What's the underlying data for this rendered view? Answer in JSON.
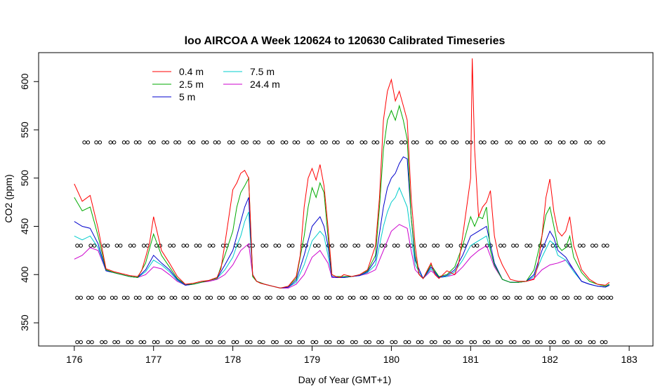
{
  "chart_data": {
    "type": "line",
    "title": "loo AIRCOA A  Week 120624 to 120630  Calibrated Timeseries",
    "xlabel": "Day of Year (GMT+1)",
    "ylabel": "CO2 (ppm)",
    "xlim": [
      175.55,
      183.3
    ],
    "ylim": [
      326,
      630
    ],
    "xticks": [
      176,
      177,
      178,
      179,
      180,
      181,
      182,
      183
    ],
    "yticks": [
      350,
      400,
      450,
      500,
      550,
      600
    ],
    "legend_position": "top-left",
    "grid": false,
    "series": [
      {
        "name": "0.4 m",
        "color": "#ff0000",
        "x": [
          176.0,
          176.1,
          176.2,
          176.3,
          176.4,
          176.5,
          176.6,
          176.7,
          176.8,
          176.85,
          176.9,
          176.95,
          177.0,
          177.1,
          177.2,
          177.3,
          177.4,
          177.5,
          177.6,
          177.7,
          177.8,
          177.85,
          177.9,
          177.95,
          178.0,
          178.05,
          178.1,
          178.15,
          178.2,
          178.25,
          178.3,
          178.35,
          178.4,
          178.5,
          178.6,
          178.7,
          178.8,
          178.85,
          178.9,
          178.95,
          179.0,
          179.05,
          179.1,
          179.15,
          179.2,
          179.25,
          179.3,
          179.35,
          179.4,
          179.5,
          179.6,
          179.7,
          179.8,
          179.85,
          179.9,
          179.95,
          180.0,
          180.05,
          180.1,
          180.15,
          180.2,
          180.25,
          180.3,
          180.35,
          180.4,
          180.5,
          180.55,
          180.6,
          180.7,
          180.8,
          180.85,
          180.9,
          180.95,
          181.0,
          181.02,
          181.05,
          181.1,
          181.15,
          181.2,
          181.25,
          181.3,
          181.35,
          181.4,
          181.5,
          181.6,
          181.7,
          181.8,
          181.85,
          181.9,
          181.95,
          182.0,
          182.05,
          182.1,
          182.15,
          182.2,
          182.25,
          182.3,
          182.4,
          182.5,
          182.6,
          182.7,
          182.75
        ],
        "y": [
          494,
          476,
          482,
          448,
          406,
          403,
          401,
          399,
          398,
          404,
          418,
          433,
          460,
          425,
          412,
          398,
          390,
          391,
          393,
          394,
          397,
          406,
          432,
          460,
          488,
          495,
          505,
          508,
          500,
          400,
          393,
          391,
          390,
          388,
          386,
          388,
          398,
          420,
          470,
          500,
          510,
          498,
          514,
          492,
          450,
          400,
          398,
          397,
          400,
          398,
          400,
          405,
          430,
          480,
          560,
          590,
          602,
          580,
          590,
          575,
          560,
          480,
          430,
          400,
          396,
          412,
          400,
          396,
          404,
          400,
          412,
          440,
          470,
          500,
          624,
          530,
          460,
          470,
          475,
          487,
          440,
          420,
          410,
          395,
          393,
          393,
          395,
          410,
          440,
          480,
          499,
          465,
          445,
          440,
          445,
          460,
          430,
          405,
          395,
          390,
          389,
          392
        ]
      },
      {
        "name": "2.5 m",
        "color": "#00aa00",
        "x": [
          176.0,
          176.1,
          176.2,
          176.3,
          176.4,
          176.5,
          176.6,
          176.7,
          176.8,
          176.9,
          177.0,
          177.1,
          177.2,
          177.3,
          177.4,
          177.5,
          177.6,
          177.7,
          177.8,
          177.9,
          178.0,
          178.05,
          178.1,
          178.15,
          178.2,
          178.25,
          178.3,
          178.4,
          178.5,
          178.6,
          178.7,
          178.8,
          178.9,
          178.95,
          179.0,
          179.05,
          179.1,
          179.15,
          179.2,
          179.25,
          179.3,
          179.4,
          179.5,
          179.6,
          179.7,
          179.8,
          179.85,
          179.9,
          179.95,
          180.0,
          180.05,
          180.1,
          180.15,
          180.2,
          180.25,
          180.3,
          180.35,
          180.4,
          180.5,
          180.6,
          180.7,
          180.8,
          180.9,
          181.0,
          181.05,
          181.1,
          181.15,
          181.2,
          181.25,
          181.3,
          181.4,
          181.5,
          181.6,
          181.7,
          181.8,
          181.9,
          181.95,
          182.0,
          182.05,
          182.1,
          182.15,
          182.2,
          182.25,
          182.3,
          182.4,
          182.5,
          182.6,
          182.7,
          182.75
        ],
        "y": [
          480,
          466,
          470,
          440,
          405,
          402,
          400,
          398,
          397,
          412,
          442,
          420,
          408,
          396,
          390,
          390,
          392,
          394,
          396,
          420,
          445,
          470,
          485,
          492,
          500,
          398,
          393,
          390,
          388,
          386,
          388,
          396,
          440,
          470,
          490,
          480,
          495,
          485,
          440,
          400,
          398,
          398,
          398,
          400,
          404,
          420,
          470,
          530,
          560,
          570,
          560,
          575,
          560,
          540,
          460,
          420,
          400,
          396,
          410,
          398,
          400,
          408,
          430,
          460,
          450,
          460,
          458,
          470,
          425,
          410,
          395,
          392,
          392,
          393,
          405,
          440,
          462,
          470,
          450,
          430,
          425,
          428,
          440,
          418,
          402,
          393,
          390,
          388,
          390
        ]
      },
      {
        "name": "5 m",
        "color": "#0000cc",
        "x": [
          176.0,
          176.1,
          176.2,
          176.3,
          176.4,
          176.5,
          176.6,
          176.7,
          176.8,
          176.9,
          177.0,
          177.1,
          177.2,
          177.3,
          177.4,
          177.5,
          177.6,
          177.7,
          177.8,
          177.9,
          178.0,
          178.05,
          178.1,
          178.15,
          178.2,
          178.25,
          178.3,
          178.4,
          178.5,
          178.6,
          178.7,
          178.8,
          178.9,
          179.0,
          179.05,
          179.1,
          179.15,
          179.2,
          179.25,
          179.3,
          179.4,
          179.5,
          179.6,
          179.7,
          179.8,
          179.9,
          179.95,
          180.0,
          180.05,
          180.1,
          180.15,
          180.2,
          180.25,
          180.3,
          180.4,
          180.5,
          180.6,
          180.7,
          180.8,
          180.9,
          181.0,
          181.1,
          181.2,
          181.3,
          181.4,
          181.5,
          181.6,
          181.7,
          181.8,
          181.9,
          182.0,
          182.05,
          182.1,
          182.2,
          182.3,
          182.4,
          182.5,
          182.6,
          182.7,
          182.75
        ],
        "y": [
          455,
          450,
          448,
          432,
          404,
          402,
          400,
          398,
          397,
          405,
          420,
          412,
          405,
          395,
          389,
          390,
          392,
          394,
          396,
          410,
          425,
          440,
          455,
          470,
          480,
          400,
          393,
          390,
          388,
          386,
          387,
          394,
          420,
          450,
          455,
          460,
          450,
          430,
          398,
          397,
          397,
          398,
          399,
          403,
          415,
          470,
          490,
          500,
          505,
          515,
          522,
          520,
          460,
          415,
          396,
          408,
          397,
          399,
          405,
          420,
          440,
          445,
          450,
          412,
          395,
          392,
          392,
          393,
          400,
          425,
          445,
          438,
          425,
          418,
          405,
          393,
          390,
          388,
          387,
          389
        ]
      },
      {
        "name": "7.5 m",
        "color": "#00cccc",
        "x": [
          176.0,
          176.1,
          176.2,
          176.3,
          176.4,
          176.5,
          176.6,
          176.7,
          176.8,
          176.9,
          177.0,
          177.1,
          177.2,
          177.3,
          177.4,
          177.5,
          177.6,
          177.7,
          177.8,
          177.9,
          178.0,
          178.05,
          178.1,
          178.15,
          178.2,
          178.25,
          178.3,
          178.4,
          178.5,
          178.6,
          178.7,
          178.8,
          178.9,
          179.0,
          179.05,
          179.1,
          179.15,
          179.2,
          179.25,
          179.3,
          179.4,
          179.5,
          179.6,
          179.7,
          179.8,
          179.9,
          179.95,
          180.0,
          180.05,
          180.1,
          180.15,
          180.2,
          180.25,
          180.3,
          180.4,
          180.5,
          180.6,
          180.7,
          180.8,
          180.9,
          181.0,
          181.1,
          181.2,
          181.3,
          181.4,
          181.5,
          181.6,
          181.7,
          181.8,
          181.9,
          182.0,
          182.05,
          182.1,
          182.2,
          182.3,
          182.4,
          182.5,
          182.6,
          182.7,
          182.75
        ],
        "y": [
          440,
          436,
          440,
          428,
          404,
          402,
          400,
          398,
          397,
          403,
          415,
          410,
          403,
          394,
          389,
          390,
          392,
          394,
          396,
          405,
          418,
          430,
          440,
          455,
          465,
          400,
          393,
          390,
          388,
          386,
          387,
          392,
          410,
          435,
          440,
          445,
          440,
          420,
          398,
          397,
          397,
          398,
          399,
          402,
          410,
          450,
          465,
          475,
          480,
          490,
          480,
          470,
          440,
          410,
          396,
          406,
          397,
          398,
          403,
          415,
          430,
          435,
          440,
          410,
          395,
          392,
          392,
          393,
          398,
          418,
          435,
          432,
          420,
          415,
          403,
          393,
          390,
          388,
          387,
          389
        ]
      },
      {
        "name": "24.4 m",
        "color": "#cc00cc",
        "x": [
          176.0,
          176.1,
          176.2,
          176.3,
          176.4,
          176.5,
          176.6,
          176.7,
          176.8,
          176.9,
          177.0,
          177.1,
          177.2,
          177.3,
          177.4,
          177.5,
          177.6,
          177.7,
          177.8,
          177.9,
          178.0,
          178.1,
          178.2,
          178.25,
          178.3,
          178.4,
          178.5,
          178.6,
          178.7,
          178.8,
          178.9,
          179.0,
          179.1,
          179.2,
          179.25,
          179.3,
          179.4,
          179.5,
          179.6,
          179.7,
          179.8,
          179.9,
          180.0,
          180.1,
          180.2,
          180.25,
          180.3,
          180.4,
          180.5,
          180.6,
          180.7,
          180.8,
          180.9,
          181.0,
          181.1,
          181.2,
          181.3,
          181.4,
          181.5,
          181.6,
          181.7,
          181.8,
          181.9,
          182.0,
          182.1,
          182.2,
          182.3,
          182.4,
          182.5,
          182.6,
          182.7,
          182.75
        ],
        "y": [
          416,
          420,
          428,
          425,
          404,
          402,
          400,
          398,
          397,
          400,
          408,
          406,
          400,
          393,
          389,
          390,
          392,
          393,
          395,
          400,
          410,
          425,
          432,
          400,
          393,
          390,
          388,
          386,
          386,
          390,
          400,
          418,
          425,
          412,
          397,
          397,
          397,
          398,
          399,
          401,
          405,
          425,
          445,
          452,
          448,
          425,
          405,
          396,
          404,
          397,
          398,
          400,
          408,
          418,
          425,
          430,
          408,
          395,
          392,
          392,
          393,
          396,
          405,
          410,
          412,
          415,
          405,
          393,
          390,
          388,
          387,
          389
        ]
      }
    ],
    "calibration_markers": [
      {
        "level": 537,
        "x": [
          176.15,
          176.3,
          176.48,
          176.65,
          176.8,
          176.98,
          177.15,
          177.3,
          177.48,
          177.65,
          177.8,
          177.98,
          178.15,
          178.3,
          178.48,
          178.65,
          178.8,
          178.98,
          179.15,
          179.3,
          179.48,
          179.65,
          179.8,
          179.98,
          180.15,
          180.3,
          180.48,
          180.65,
          180.8,
          180.98,
          181.15,
          181.3,
          181.48,
          181.65,
          181.8,
          181.98,
          182.15,
          182.3,
          182.48,
          182.65
        ]
      },
      {
        "level": 430,
        "x": [
          176.06,
          176.23,
          176.4,
          176.56,
          176.73,
          176.9,
          177.06,
          177.23,
          177.4,
          177.56,
          177.73,
          177.9,
          178.06,
          178.23,
          178.4,
          178.56,
          178.73,
          178.9,
          179.06,
          179.23,
          179.4,
          179.56,
          179.73,
          179.9,
          180.06,
          180.23,
          180.4,
          180.56,
          180.73,
          180.9,
          181.06,
          181.23,
          181.4,
          181.56,
          181.73,
          181.9,
          182.06,
          182.23,
          182.4,
          182.56,
          182.7
        ]
      },
      {
        "level": 376,
        "x": [
          176.06,
          176.2,
          176.35,
          176.5,
          176.65,
          176.8,
          176.95,
          177.1,
          177.25,
          177.4,
          177.55,
          177.7,
          177.85,
          178.0,
          178.15,
          178.3,
          178.45,
          178.6,
          178.75,
          178.9,
          179.05,
          179.2,
          179.35,
          179.5,
          179.65,
          179.8,
          179.95,
          180.1,
          180.25,
          180.4,
          180.55,
          180.7,
          180.85,
          181.0,
          181.15,
          181.3,
          181.45,
          181.6,
          181.75,
          181.9,
          182.05,
          182.2,
          182.35,
          182.5,
          182.65,
          182.75
        ]
      },
      {
        "level": 330,
        "x": [
          176.06,
          176.2,
          176.37,
          176.53,
          176.7,
          176.86,
          177.03,
          177.2,
          177.36,
          177.53,
          177.7,
          177.86,
          178.03,
          178.2,
          178.36,
          178.53,
          178.7,
          178.86,
          179.03,
          179.2,
          179.36,
          179.53,
          179.7,
          179.86,
          180.03,
          180.2,
          180.36,
          180.53,
          180.7,
          180.86,
          181.03,
          181.2,
          181.36,
          181.53,
          181.7,
          181.86,
          182.03,
          182.2,
          182.36,
          182.53,
          182.68
        ]
      }
    ]
  }
}
